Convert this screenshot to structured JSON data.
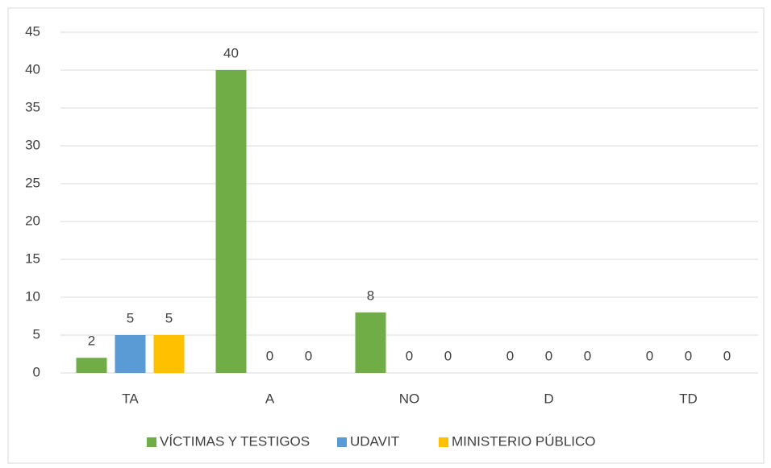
{
  "chart_data": {
    "type": "bar",
    "categories": [
      "TA",
      "A",
      "NO",
      "D",
      "TD"
    ],
    "series": [
      {
        "name": "VÍCTIMAS Y TESTIGOS",
        "color": "#70ad47",
        "values": [
          2,
          40,
          8,
          0,
          0
        ]
      },
      {
        "name": "UDAVIT",
        "color": "#5b9bd5",
        "values": [
          5,
          0,
          0,
          0,
          0
        ]
      },
      {
        "name": "MINISTERIO PÚBLICO",
        "color": "#ffc000",
        "values": [
          5,
          0,
          0,
          0,
          0
        ]
      }
    ],
    "ylim": [
      0,
      45
    ],
    "yticks": [
      0,
      5,
      10,
      15,
      20,
      25,
      30,
      35,
      40,
      45
    ],
    "grid": true,
    "legend": "bottom"
  }
}
